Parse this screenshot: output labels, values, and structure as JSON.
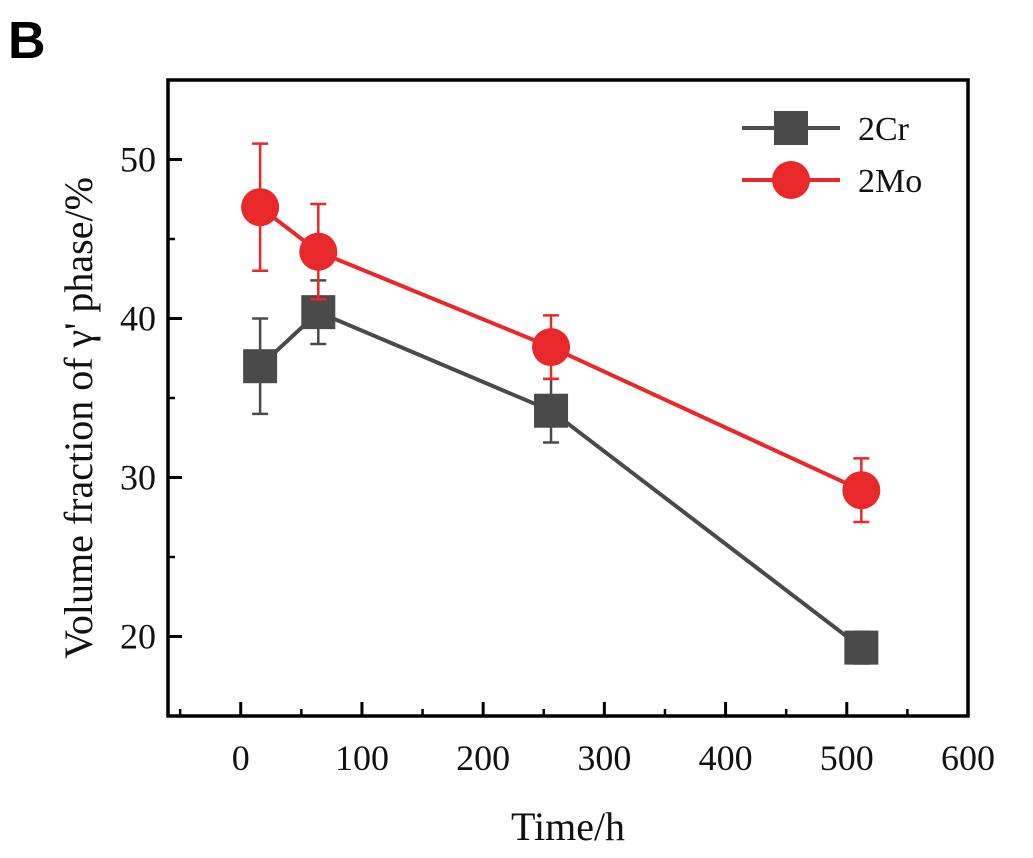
{
  "panel_label": "B",
  "chart_data": {
    "type": "line",
    "xlabel": "Time/h",
    "ylabel": "Volume fraction of γ' phase/%",
    "xlim": [
      -60,
      600
    ],
    "ylim": [
      15,
      55
    ],
    "xticks": [
      0,
      100,
      200,
      300,
      400,
      500,
      600
    ],
    "yticks": [
      20,
      30,
      40,
      50
    ],
    "grid": false,
    "legend_position": "top-right",
    "series": [
      {
        "name": "2Cr",
        "color": "#4a4a4a",
        "marker": "square",
        "points": [
          {
            "x": 16,
            "y": 37.0,
            "err": 3.0
          },
          {
            "x": 64,
            "y": 40.4,
            "err": 2.0
          },
          {
            "x": 256,
            "y": 34.2,
            "err": 2.0
          },
          {
            "x": 512,
            "y": 19.3,
            "err": 1.0
          }
        ]
      },
      {
        "name": "2Mo",
        "color": "#e8282a",
        "marker": "circle",
        "points": [
          {
            "x": 16,
            "y": 47.0,
            "err": 4.0
          },
          {
            "x": 64,
            "y": 44.2,
            "err": 3.0
          },
          {
            "x": 256,
            "y": 38.2,
            "err": 2.0
          },
          {
            "x": 512,
            "y": 29.2,
            "err": 2.0
          }
        ]
      }
    ]
  }
}
